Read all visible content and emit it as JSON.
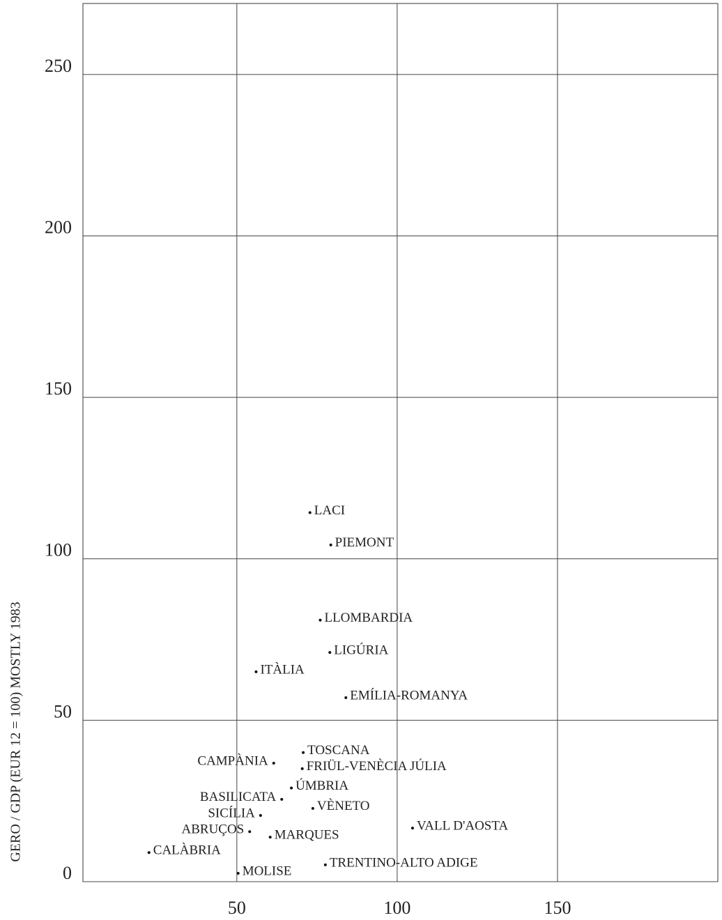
{
  "chart_data": {
    "type": "scatter",
    "y_label": "GERO / GDP (EUR 12 = 100) MOSTLY 1983",
    "labels": [
      "LACI",
      "PIEMONT",
      "LLOMBARDIA",
      "LIGÚRIA",
      "ITÀLIA",
      "EMÍLIA-ROMANYA",
      "TOSCANA",
      "FRIÜL-VENÈCIA JÚLIA",
      "ÚMBRIA",
      "VÈNETO",
      "CAMPÀNIA",
      "BASILICATA",
      "SICÍLIA",
      "ABRUÇOS",
      "MARQUES",
      "VALL D'AOSTA",
      "CALÀBRIA",
      "TRENTINO-ALTO ADIGE",
      "MOLISE"
    ],
    "x": [
      72.8,
      79.3,
      76,
      79,
      56,
      84,
      70.7,
      70.4,
      67,
      73.7,
      61.5,
      64,
      57.4,
      54,
      60.4,
      104.8,
      22.6,
      77.6,
      50.4
    ],
    "values": [
      114.3,
      104.3,
      81,
      71,
      65,
      57,
      40,
      35,
      29,
      22.7,
      36.7,
      25.5,
      20.5,
      15.5,
      13.8,
      16.6,
      9,
      5.2,
      2.6
    ],
    "color": "#111111",
    "xlim": [
      2,
      200
    ],
    "xticks": [
      50,
      100,
      150
    ],
    "ylim": [
      0,
      272
    ],
    "yticks": [
      0,
      50,
      100,
      150,
      200,
      250
    ],
    "grid": true
  }
}
